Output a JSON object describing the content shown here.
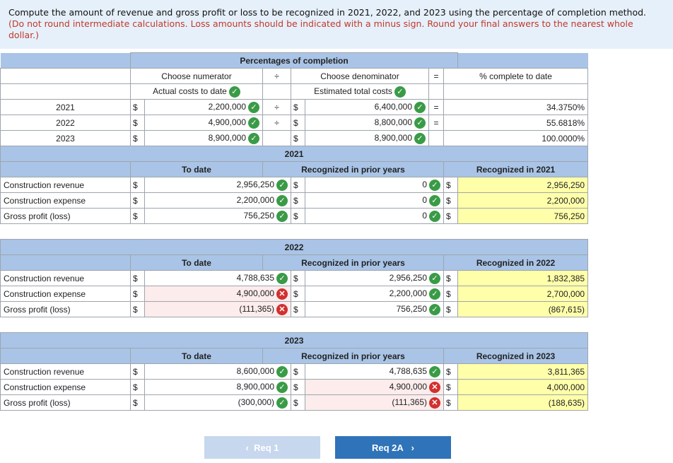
{
  "instructions": {
    "main": "Compute the amount of revenue and gross profit or loss to be recognized in 2021, 2022, and 2023 using the percentage of completion method.",
    "note": "(Do not round intermediate calculations. Loss amounts should be indicated with a minus sign. Round your final answers to the nearest whole dollar.)"
  },
  "pct": {
    "header": "Percentages of completion",
    "num_label": "Choose numerator",
    "div": "÷",
    "den_label": "Choose denominator",
    "eq": "=",
    "result_label": "% complete to date",
    "num_value": "Actual costs to date",
    "den_value": "Estimated total costs",
    "rows": [
      {
        "year": "2021",
        "num": "2,200,000",
        "den": "6,400,000",
        "pct": "34.3750%"
      },
      {
        "year": "2022",
        "num": "4,900,000",
        "den": "8,800,000",
        "pct": "55.6818%"
      },
      {
        "year": "2023",
        "num": "8,900,000",
        "den": "8,900,000",
        "pct": "100.0000%"
      }
    ]
  },
  "labels": {
    "to_date": "To date",
    "prior": "Recognized in prior years",
    "dollar": "$",
    "rev": "Construction revenue",
    "exp": "Construction expense",
    "gp": "Gross profit (loss)"
  },
  "years": [
    {
      "title": "2021",
      "recognized": "Recognized in 2021",
      "rev": {
        "to_date": "2,956,250",
        "prior": "0",
        "current": "2,956,250"
      },
      "exp": {
        "to_date": "2,200,000",
        "prior": "0",
        "current": "2,200,000"
      },
      "gp": {
        "to_date": "756,250",
        "prior": "0",
        "current": "756,250"
      }
    },
    {
      "title": "2022",
      "recognized": "Recognized in 2022",
      "rev": {
        "to_date": "4,788,635",
        "prior": "2,956,250",
        "current": "1,832,385"
      },
      "exp": {
        "to_date": "4,900,000",
        "prior": "2,200,000",
        "current": "2,700,000"
      },
      "gp": {
        "to_date": "(111,365)",
        "prior": "756,250",
        "current": "(867,615)"
      }
    },
    {
      "title": "2023",
      "recognized": "Recognized in 2023",
      "rev": {
        "to_date": "8,600,000",
        "prior": "4,788,635",
        "current": "3,811,365"
      },
      "exp": {
        "to_date": "8,900,000",
        "prior": "4,900,000",
        "current": "4,000,000"
      },
      "gp": {
        "to_date": "(300,000)",
        "prior": "(111,365)",
        "current": "(188,635)"
      }
    }
  ],
  "nav": {
    "prev": "Req 1",
    "next": "Req 2A"
  }
}
